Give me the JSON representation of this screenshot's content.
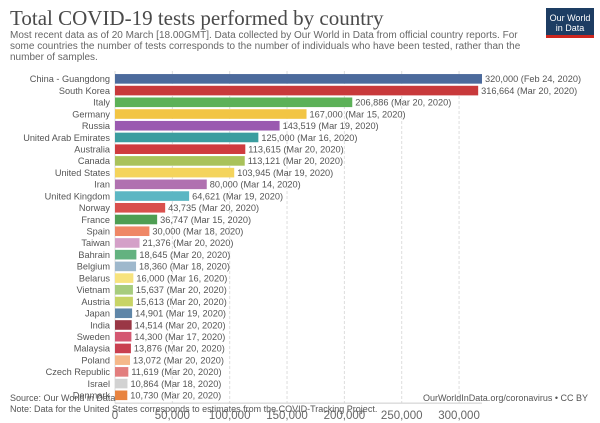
{
  "header": {
    "title": "Total COVID-19 tests performed by country",
    "subtitle": "Most recent data as of 20 March [18.00GMT]. Data collected by Our World in Data from official country reports. For some countries the number of tests corresponds to the number of individuals who have been tested, rather than the number of samples.",
    "logo_line1": "Our World",
    "logo_line2": "in Data"
  },
  "footer": {
    "source": "Source: Our World in Data",
    "note": "Note: Data for the United States corresponds to estimates from the COVID-Tracking Project.",
    "url": "OurWorldInData.org/coronavirus • CC BY"
  },
  "chart_data": {
    "type": "bar",
    "orientation": "horizontal",
    "xlim": [
      0,
      320000
    ],
    "xticks": [
      0,
      50000,
      100000,
      150000,
      200000,
      250000,
      300000
    ],
    "xtick_labels": [
      "0",
      "50,000",
      "100,000",
      "150,000",
      "200,000",
      "250,000",
      "300,000"
    ],
    "grid": true,
    "categories": [
      "China - Guangdong",
      "South Korea",
      "Italy",
      "Germany",
      "Russia",
      "United Arab Emirates",
      "Australia",
      "Canada",
      "United States",
      "Iran",
      "United Kingdom",
      "Norway",
      "France",
      "Spain",
      "Taiwan",
      "Bahrain",
      "Belgium",
      "Belarus",
      "Vietnam",
      "Austria",
      "Japan",
      "India",
      "Sweden",
      "Malaysia",
      "Poland",
      "Czech Republic",
      "Israel",
      "Denmark"
    ],
    "values": [
      320000,
      316664,
      206886,
      167000,
      143519,
      125000,
      113615,
      113121,
      103945,
      80000,
      64621,
      43735,
      36747,
      30000,
      21376,
      18645,
      18360,
      16000,
      15637,
      15613,
      14901,
      14514,
      14300,
      13876,
      13072,
      11619,
      10864,
      10730
    ],
    "value_labels": [
      "320,000 (Feb 24, 2020)",
      "316,664 (Mar 20, 2020)",
      "206,886 (Mar 20, 2020)",
      "167,000 (Mar 15, 2020)",
      "143,519 (Mar 19, 2020)",
      "125,000 (Mar 16, 2020)",
      "113,615 (Mar 20, 2020)",
      "113,121 (Mar 20, 2020)",
      "103,945 (Mar 19, 2020)",
      "80,000 (Mar 14, 2020)",
      "64,621 (Mar 19, 2020)",
      "43,735 (Mar 20, 2020)",
      "36,747 (Mar 15, 2020)",
      "30,000 (Mar 18, 2020)",
      "21,376 (Mar 20, 2020)",
      "18,645 (Mar 20, 2020)",
      "18,360 (Mar 18, 2020)",
      "16,000 (Mar 16, 2020)",
      "15,637 (Mar 20, 2020)",
      "15,613 (Mar 20, 2020)",
      "14,901 (Mar 19, 2020)",
      "14,514 (Mar 20, 2020)",
      "14,300 (Mar 17, 2020)",
      "13,876 (Mar 20, 2020)",
      "13,072 (Mar 20, 2020)",
      "11,619 (Mar 20, 2020)",
      "10,864 (Mar 18, 2020)",
      "10,730 (Mar 20, 2020)"
    ],
    "colors": [
      "#4c6a9c",
      "#c8393b",
      "#5cb158",
      "#f2c544",
      "#9a5ab0",
      "#3b9d9f",
      "#cf3b3e",
      "#a9c25a",
      "#f4d45c",
      "#b071b0",
      "#5cb6c3",
      "#d9504d",
      "#4e9e53",
      "#ef8766",
      "#d4a0c8",
      "#63b280",
      "#9eb8cc",
      "#f7e37e",
      "#a7cc7e",
      "#c8d466",
      "#5f86a8",
      "#9a3745",
      "#d45872",
      "#c94050",
      "#f5b88a",
      "#e27e7e",
      "#d2d2d2",
      "#e8833f"
    ]
  }
}
